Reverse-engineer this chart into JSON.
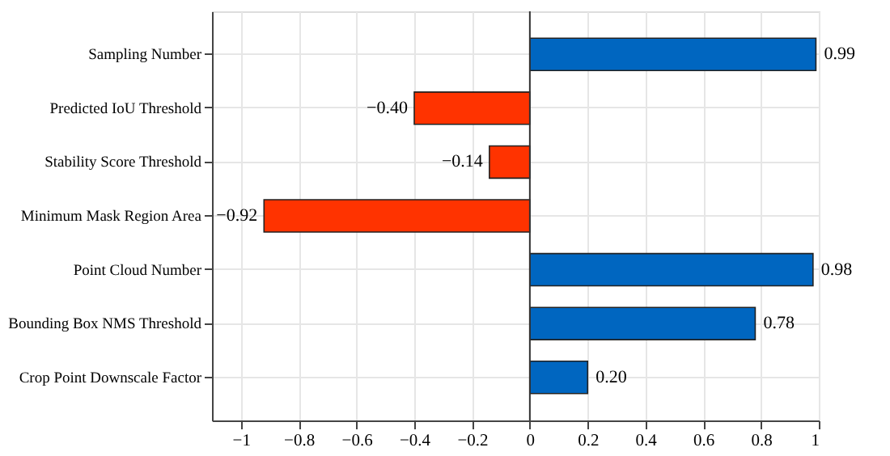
{
  "chart_data": {
    "type": "bar",
    "orientation": "horizontal",
    "categories": [
      "Sampling Number",
      "Predicted IoU Threshold",
      "Stability Score Threshold",
      "Minimum Mask Region Area",
      "Point Cloud Number",
      "Bounding Box NMS Threshold",
      "Crop Point Downscale Factor"
    ],
    "values": [
      0.99,
      -0.4,
      -0.14,
      -0.92,
      0.98,
      0.78,
      0.2
    ],
    "value_labels": [
      "0.99",
      "−0.40",
      "−0.14",
      "−0.92",
      "0.98",
      "0.78",
      "0.20"
    ],
    "colors": [
      "#0066c0",
      "#ff3300",
      "#ff3300",
      "#ff3300",
      "#0066c0",
      "#0066c0",
      "#0066c0"
    ],
    "xlim": [
      -1.1,
      1.0
    ],
    "xticks": [
      {
        "value": -1,
        "label": "−1"
      },
      {
        "value": -0.8,
        "label": "−0.8"
      },
      {
        "value": -0.6,
        "label": "−0.6"
      },
      {
        "value": -0.4,
        "label": "−0.4"
      },
      {
        "value": -0.2,
        "label": "−0.2"
      },
      0,
      0.2,
      0.4,
      0.6,
      0.8,
      1
    ],
    "ref_lines": [
      {
        "axis": "x",
        "value": 0,
        "color": "#333333"
      }
    ],
    "grid": true
  }
}
